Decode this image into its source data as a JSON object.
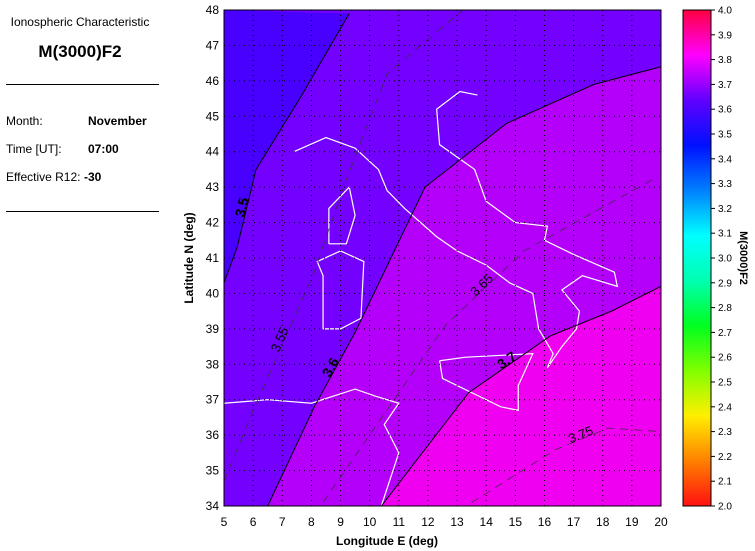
{
  "panel": {
    "subtitle": "Ionospheric Characteristic",
    "title": "M(3000)F2",
    "month_label": "Month:",
    "month_value": "November",
    "time_label": "Time [UT]:",
    "time_value": "07:00",
    "r12_label": "Effective R12:",
    "r12_value": "-30"
  },
  "chart_data": {
    "type": "contour",
    "xlabel": "Longitude E (deg)",
    "ylabel": "Latitude N (deg)",
    "xlim": [
      5,
      20
    ],
    "ylim": [
      34,
      48
    ],
    "xticks": [
      5,
      6,
      7,
      8,
      9,
      10,
      11,
      12,
      13,
      14,
      15,
      16,
      17,
      18,
      19,
      20
    ],
    "yticks": [
      34,
      35,
      36,
      37,
      38,
      39,
      40,
      41,
      42,
      43,
      44,
      45,
      46,
      47,
      48
    ],
    "grid": true,
    "colorbar": {
      "label": "M(3000)F2",
      "range": [
        2.0,
        4.0
      ],
      "ticks": [
        "2.0",
        "2.1",
        "2.2",
        "2.3",
        "2.4",
        "2.5",
        "2.6",
        "2.7",
        "2.8",
        "2.9",
        "3.0",
        "3.1",
        "3.2",
        "3.3",
        "3.4",
        "3.5",
        "3.6",
        "3.7",
        "3.8",
        "3.9",
        "4.0"
      ],
      "colors": [
        "#ff1010",
        "#ff8000",
        "#ffee00",
        "#80ff00",
        "#00ff20",
        "#00ffb0",
        "#00ffff",
        "#0080ff",
        "#0010ff",
        "#6000ff",
        "#ff00ff",
        "#ff0040"
      ]
    },
    "contours": [
      {
        "level": "3.5",
        "style": "solid",
        "points": [
          [
            5.0,
            40.3
          ],
          [
            5.45,
            41.3
          ],
          [
            6.1,
            43.5
          ],
          [
            7.6,
            45.5
          ],
          [
            9.3,
            47.9
          ]
        ]
      },
      {
        "level": "3.55",
        "style": "dashed",
        "points": [
          [
            5.0,
            34.7
          ],
          [
            6.0,
            36.7
          ],
          [
            8.1,
            40.6
          ],
          [
            9.1,
            43.0
          ],
          [
            10.6,
            46.2
          ],
          [
            13.2,
            48.0
          ]
        ]
      },
      {
        "level": "3.6",
        "style": "solid",
        "points": [
          [
            6.5,
            34.0
          ],
          [
            8.1,
            36.8
          ],
          [
            9.5,
            38.9
          ],
          [
            11.9,
            43.0
          ],
          [
            14.7,
            44.8
          ],
          [
            17.7,
            45.9
          ],
          [
            20.0,
            46.4
          ]
        ]
      },
      {
        "level": "3.65",
        "style": "dashed",
        "points": [
          [
            8.4,
            34.1
          ],
          [
            12.6,
            39.1
          ],
          [
            15.3,
            41.2
          ],
          [
            19.9,
            43.3
          ]
        ]
      },
      {
        "level": "3.7",
        "style": "solid",
        "points": [
          [
            10.4,
            34.0
          ],
          [
            13.4,
            37.2
          ],
          [
            16.2,
            38.8
          ],
          [
            18.3,
            39.5
          ],
          [
            20.0,
            40.2
          ]
        ]
      },
      {
        "level": "3.75",
        "style": "dashed",
        "points": [
          [
            13.5,
            34.1
          ],
          [
            16.4,
            35.6
          ],
          [
            18.2,
            36.2
          ],
          [
            20.0,
            36.1
          ]
        ]
      }
    ],
    "region_colors": [
      "#4800ff",
      "#7400ff",
      "#b400fa",
      "#f000f0"
    ]
  }
}
